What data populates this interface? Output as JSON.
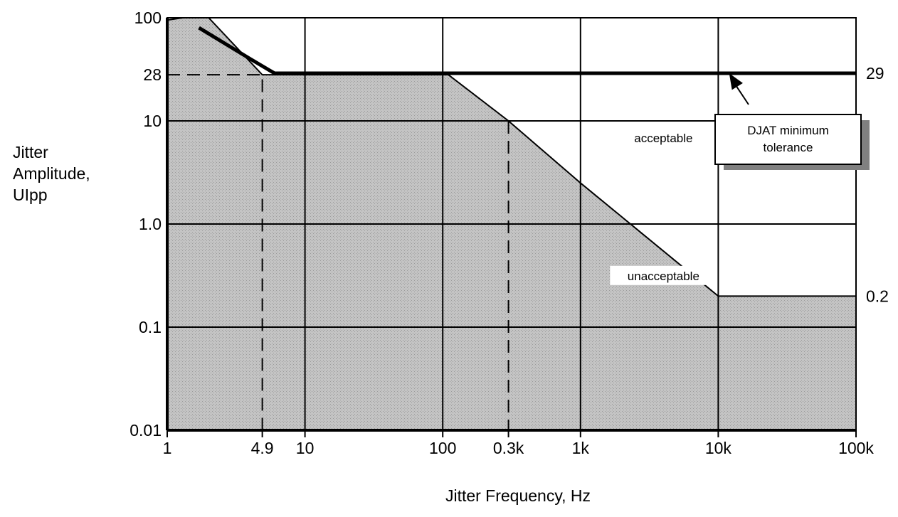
{
  "chart_data": {
    "type": "line",
    "x_scale": "log",
    "y_scale": "log",
    "xlim": [
      1,
      100000
    ],
    "ylim": [
      0.01,
      100
    ],
    "grid": true,
    "xlabel": "Jitter Frequency, Hz",
    "ylabel": [
      "Jitter",
      "Amplitude,",
      "UIpp"
    ],
    "x_ticks": [
      {
        "value": 1,
        "label": "1"
      },
      {
        "value": 4.9,
        "label": "4.9"
      },
      {
        "value": 10,
        "label": "10"
      },
      {
        "value": 100,
        "label": "100"
      },
      {
        "value": 300,
        "label": "0.3k"
      },
      {
        "value": 1000,
        "label": "1k"
      },
      {
        "value": 10000,
        "label": "10k"
      },
      {
        "value": 100000,
        "label": "100k"
      }
    ],
    "y_ticks": [
      {
        "value": 100,
        "label": "100"
      },
      {
        "value": 28,
        "label": "28"
      },
      {
        "value": 10,
        "label": "10"
      },
      {
        "value": 1.0,
        "label": "1.0"
      },
      {
        "value": 0.1,
        "label": "0.1"
      },
      {
        "value": 0.01,
        "label": "0.01"
      }
    ],
    "gridlines_x": [
      10,
      100,
      1000,
      10000
    ],
    "gridlines_y": [
      10,
      1,
      0.1
    ],
    "guide_lines": [
      {
        "style": "dashed",
        "points": [
          [
            1,
            28
          ],
          [
            4.9,
            28
          ],
          [
            4.9,
            0.01
          ]
        ]
      },
      {
        "style": "dashed",
        "points": [
          [
            300,
            10
          ],
          [
            300,
            0.01
          ]
        ]
      }
    ],
    "series": [
      {
        "role": "unacceptable-region",
        "fill": "#c0c0c0",
        "x": [
          1,
          1.3,
          2,
          4.9,
          110,
          300,
          1000,
          10000,
          100000
        ],
        "y": [
          95,
          100,
          100,
          28,
          28,
          10,
          2.5,
          0.2,
          0.2
        ]
      },
      {
        "role": "djat-minimum-tolerance",
        "x": [
          1.7,
          4,
          6,
          100000
        ],
        "y": [
          80,
          40,
          29,
          29
        ]
      }
    ],
    "right_labels": [
      {
        "value": 29,
        "label": "29"
      },
      {
        "value": 0.2,
        "label": "0.2"
      }
    ],
    "region_labels": [
      {
        "text": "acceptable",
        "x": 4000,
        "y": 6.5
      },
      {
        "text": "unacceptable",
        "x": 4000,
        "y": 0.3
      }
    ],
    "callout": {
      "lines": [
        "DJAT minimum",
        "tolerance"
      ],
      "arrow_to": [
        12000,
        29
      ]
    },
    "colors": {
      "shade": "#c0c0c0",
      "line": "#000000",
      "callout_shadow": "#808080"
    }
  }
}
